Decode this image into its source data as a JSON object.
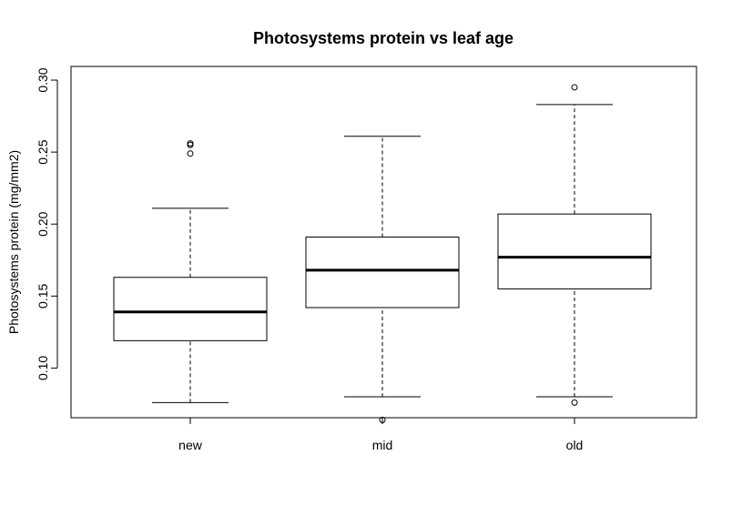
{
  "chart_data": {
    "type": "box",
    "title": "Photosystems protein vs leaf age",
    "xlabel": "",
    "ylabel": "Photosystems protein (mg/mm2)",
    "categories": [
      "new",
      "mid",
      "old"
    ],
    "yticks": [
      "0.10",
      "0.15",
      "0.20",
      "0.25",
      "0.30"
    ],
    "ylim": [
      0.0655,
      0.3095
    ],
    "grid": false,
    "legend": "none",
    "boxes": [
      {
        "name": "new",
        "whisker_low": 0.076,
        "q1": 0.119,
        "median": 0.139,
        "q3": 0.163,
        "whisker_high": 0.211,
        "outliers": [
          0.249,
          0.255,
          0.256
        ]
      },
      {
        "name": "mid",
        "whisker_low": 0.08,
        "q1": 0.142,
        "median": 0.168,
        "q3": 0.191,
        "whisker_high": 0.261,
        "outliers": [
          0.064
        ]
      },
      {
        "name": "old",
        "whisker_low": 0.08,
        "q1": 0.155,
        "median": 0.177,
        "q3": 0.207,
        "whisker_high": 0.283,
        "outliers": [
          0.076,
          0.295
        ]
      }
    ],
    "colors": {
      "box_fill": "#ffffff",
      "stroke": "#000000"
    }
  }
}
